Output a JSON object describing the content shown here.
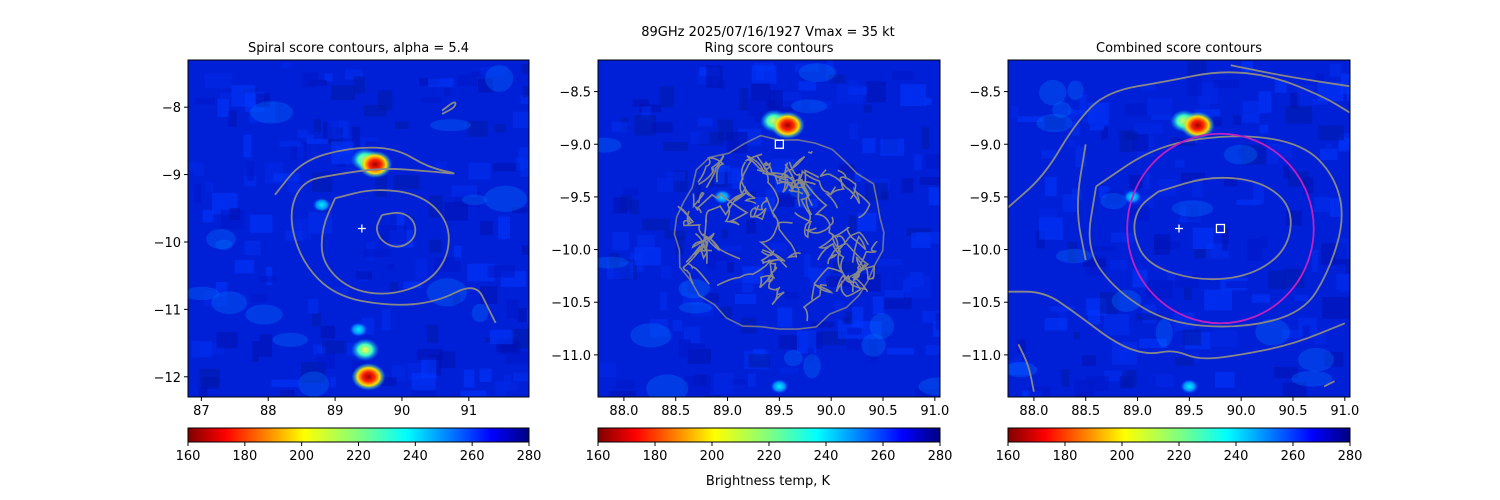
{
  "suptitle": {
    "line1": "89GHz  2025/07/16/1927    Vmax = 35 kt"
  },
  "colorbar_label": "Brightness temp, K",
  "colorbar_ticks": [
    "160",
    "180",
    "200",
    "220",
    "240",
    "260",
    "280"
  ],
  "colors": {
    "background_field": "#0020d8",
    "contour": "#888888",
    "circle": "#c020c0",
    "marker": "#ffffff"
  },
  "chart_data": [
    {
      "type": "heatmap",
      "title": "Spiral score contours, alpha =  5.4",
      "xlim": [
        86.8,
        91.9
      ],
      "ylim": [
        -12.3,
        -7.3
      ],
      "xticks": [
        87,
        88,
        89,
        90,
        91
      ],
      "xtick_labels": [
        "87",
        "88",
        "89",
        "90",
        "91"
      ],
      "yticks": [
        -8,
        -9,
        -10,
        -11,
        -12
      ],
      "ytick_labels": [
        "−8",
        "−9",
        "−10",
        "−11",
        "−12"
      ],
      "colorbar": {
        "min": 160,
        "max": 280,
        "cmap": "jet_r"
      },
      "hotspots": [
        {
          "x": 89.45,
          "y": -8.78,
          "value": 190
        },
        {
          "x": 89.6,
          "y": -8.85,
          "value": 168
        },
        {
          "x": 89.5,
          "y": -12.0,
          "value": 165
        },
        {
          "x": 89.45,
          "y": -11.6,
          "value": 200
        },
        {
          "x": 89.35,
          "y": -11.3,
          "value": 215
        },
        {
          "x": 88.8,
          "y": -9.45,
          "value": 225
        }
      ],
      "contours": [
        [
          [
            89.7,
            -9.6
          ],
          [
            90.0,
            -9.55
          ],
          [
            90.2,
            -9.7
          ],
          [
            90.2,
            -9.95
          ],
          [
            89.95,
            -10.1
          ],
          [
            89.7,
            -10.0
          ],
          [
            89.6,
            -9.8
          ],
          [
            89.7,
            -9.6
          ]
        ],
        [
          [
            89.0,
            -9.35
          ],
          [
            89.6,
            -9.2
          ],
          [
            90.3,
            -9.3
          ],
          [
            90.7,
            -9.7
          ],
          [
            90.7,
            -10.2
          ],
          [
            90.4,
            -10.6
          ],
          [
            89.8,
            -10.8
          ],
          [
            89.2,
            -10.7
          ],
          [
            88.8,
            -10.3
          ],
          [
            88.8,
            -9.8
          ],
          [
            89.0,
            -9.35
          ]
        ],
        [
          [
            88.1,
            -9.3
          ],
          [
            88.5,
            -8.8
          ],
          [
            89.2,
            -8.6
          ],
          [
            89.9,
            -8.6
          ],
          [
            90.4,
            -8.9
          ],
          [
            90.9,
            -9.0
          ],
          [
            90.4,
            -8.95
          ],
          [
            89.7,
            -8.9
          ],
          [
            89.0,
            -9.0
          ],
          [
            88.5,
            -9.1
          ],
          [
            88.3,
            -9.6
          ],
          [
            88.5,
            -10.3
          ],
          [
            89.0,
            -10.8
          ],
          [
            89.8,
            -10.95
          ],
          [
            90.5,
            -10.9
          ],
          [
            91.1,
            -10.6
          ],
          [
            91.3,
            -11.0
          ],
          [
            91.4,
            -11.2
          ]
        ],
        [
          [
            90.6,
            -8.1
          ],
          [
            90.8,
            -8.0
          ],
          [
            90.8,
            -7.9
          ],
          [
            90.6,
            -8.05
          ]
        ]
      ],
      "markers": [
        {
          "shape": "plus",
          "x": 89.4,
          "y": -9.8
        }
      ]
    },
    {
      "type": "heatmap",
      "title": "Ring score contours",
      "xlim": [
        87.75,
        91.05
      ],
      "ylim": [
        -11.4,
        -8.2
      ],
      "xticks": [
        88.0,
        88.5,
        89.0,
        89.5,
        90.0,
        90.5,
        91.0
      ],
      "xtick_labels": [
        "88.0",
        "88.5",
        "89.0",
        "89.5",
        "90.0",
        "90.5",
        "91.0"
      ],
      "yticks": [
        -8.5,
        -9.0,
        -9.5,
        -10.0,
        -10.5,
        -11.0
      ],
      "ytick_labels": [
        "−8.5",
        "−9.0",
        "−9.5",
        "−10.0",
        "−10.5",
        "−11.0"
      ],
      "colorbar": {
        "min": 160,
        "max": 280,
        "cmap": "jet_r"
      },
      "hotspots": [
        {
          "x": 89.45,
          "y": -8.78,
          "value": 200
        },
        {
          "x": 89.58,
          "y": -8.82,
          "value": 165
        },
        {
          "x": 88.95,
          "y": -9.5,
          "value": 230
        },
        {
          "x": 89.5,
          "y": -11.3,
          "value": 235
        }
      ],
      "ring_region": {
        "cx": 89.5,
        "cy": -9.85,
        "rx": 1.05,
        "ry": 0.95
      },
      "markers": [
        {
          "shape": "square",
          "x": 89.5,
          "y": -9.0
        }
      ]
    },
    {
      "type": "heatmap",
      "title": "Combined score contours",
      "xlim": [
        87.75,
        91.05
      ],
      "ylim": [
        -11.4,
        -8.2
      ],
      "xticks": [
        88.0,
        88.5,
        89.0,
        89.5,
        90.0,
        90.5,
        91.0
      ],
      "xtick_labels": [
        "88.0",
        "88.5",
        "89.0",
        "89.5",
        "90.0",
        "90.5",
        "91.0"
      ],
      "yticks": [
        -8.5,
        -9.0,
        -9.5,
        -10.0,
        -10.5,
        -11.0
      ],
      "ytick_labels": [
        "−8.5",
        "−9.0",
        "−9.5",
        "−10.0",
        "−10.5",
        "−11.0"
      ],
      "colorbar": {
        "min": 160,
        "max": 280,
        "cmap": "jet_r"
      },
      "hotspots": [
        {
          "x": 89.45,
          "y": -8.78,
          "value": 200
        },
        {
          "x": 89.58,
          "y": -8.82,
          "value": 165
        },
        {
          "x": 88.95,
          "y": -9.5,
          "value": 230
        },
        {
          "x": 89.5,
          "y": -11.3,
          "value": 235
        }
      ],
      "contours": [
        [
          [
            89.2,
            -9.45
          ],
          [
            89.7,
            -9.3
          ],
          [
            90.2,
            -9.35
          ],
          [
            90.5,
            -9.6
          ],
          [
            90.45,
            -10.0
          ],
          [
            90.1,
            -10.25
          ],
          [
            89.6,
            -10.3
          ],
          [
            89.1,
            -10.15
          ],
          [
            88.95,
            -9.85
          ],
          [
            89.0,
            -9.6
          ],
          [
            89.2,
            -9.45
          ]
        ],
        [
          [
            88.6,
            -9.4
          ],
          [
            89.2,
            -9.0
          ],
          [
            90.0,
            -8.9
          ],
          [
            90.6,
            -9.0
          ],
          [
            90.9,
            -9.3
          ],
          [
            91.0,
            -9.7
          ],
          [
            90.85,
            -10.2
          ],
          [
            90.6,
            -10.6
          ],
          [
            90.0,
            -10.75
          ],
          [
            89.3,
            -10.7
          ],
          [
            88.8,
            -10.4
          ],
          [
            88.5,
            -10.0
          ],
          [
            88.6,
            -9.4
          ]
        ],
        [
          [
            87.75,
            -9.6
          ],
          [
            88.1,
            -9.3
          ],
          [
            88.4,
            -8.8
          ],
          [
            88.7,
            -8.5
          ],
          [
            89.3,
            -8.4
          ],
          [
            89.8,
            -8.3
          ],
          [
            90.3,
            -8.35
          ],
          [
            90.8,
            -8.55
          ],
          [
            91.05,
            -8.7
          ]
        ],
        [
          [
            87.75,
            -10.4
          ],
          [
            88.1,
            -10.4
          ],
          [
            88.4,
            -10.6
          ],
          [
            88.8,
            -10.9
          ],
          [
            89.1,
            -11.0
          ],
          [
            89.35,
            -10.95
          ],
          [
            89.6,
            -11.05
          ],
          [
            90.0,
            -11.0
          ],
          [
            90.5,
            -10.9
          ],
          [
            91.0,
            -10.7
          ]
        ],
        [
          [
            88.0,
            -11.35
          ],
          [
            87.95,
            -11.1
          ],
          [
            87.85,
            -10.9
          ]
        ],
        [
          [
            89.9,
            -8.25
          ],
          [
            90.4,
            -8.35
          ],
          [
            91.05,
            -8.45
          ]
        ],
        [
          [
            88.5,
            -9.0
          ],
          [
            88.4,
            -9.6
          ],
          [
            88.5,
            -10.1
          ]
        ],
        [
          [
            90.8,
            -11.3
          ],
          [
            90.9,
            -11.25
          ]
        ]
      ],
      "circle": {
        "cx": 89.8,
        "cy": -9.8,
        "r": 0.9
      },
      "markers": [
        {
          "shape": "plus",
          "x": 89.4,
          "y": -9.8
        },
        {
          "shape": "square",
          "x": 89.8,
          "y": -9.8
        }
      ]
    }
  ]
}
